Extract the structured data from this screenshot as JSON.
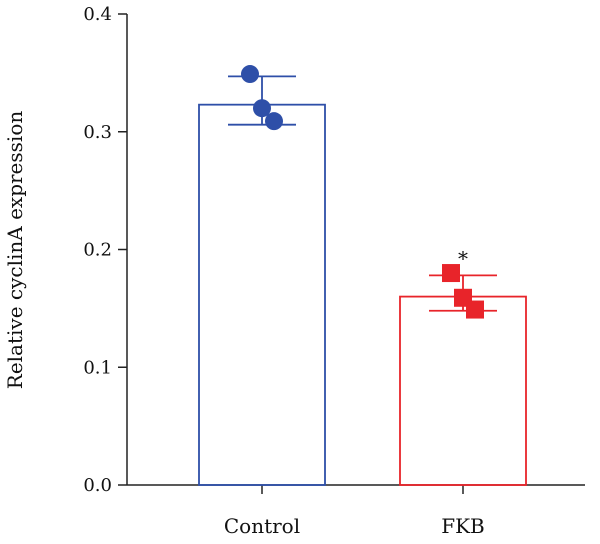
{
  "chart_data": {
    "type": "bar",
    "title": "",
    "xlabel": "",
    "ylabel": "Relative cyclinA expression",
    "ylim": [
      0,
      0.4
    ],
    "yticks": [
      0.0,
      0.1,
      0.2,
      0.3,
      0.4
    ],
    "ytick_labels": [
      "0.0",
      "0.1",
      "0.2",
      "0.3",
      "0.4"
    ],
    "categories": [
      "Control",
      "FKB"
    ],
    "values": [
      0.323,
      0.16
    ],
    "errors": [
      {
        "low": 0.306,
        "high": 0.347
      },
      {
        "low": 0.148,
        "high": 0.178
      }
    ],
    "points": [
      [
        0.349,
        0.32,
        0.309
      ],
      [
        0.18,
        0.159,
        0.149
      ]
    ],
    "colors": [
      "#2e4fa8",
      "#e8242a"
    ],
    "markers": [
      "circle",
      "square"
    ],
    "annotations": [
      "",
      "*"
    ],
    "grid": false
  }
}
